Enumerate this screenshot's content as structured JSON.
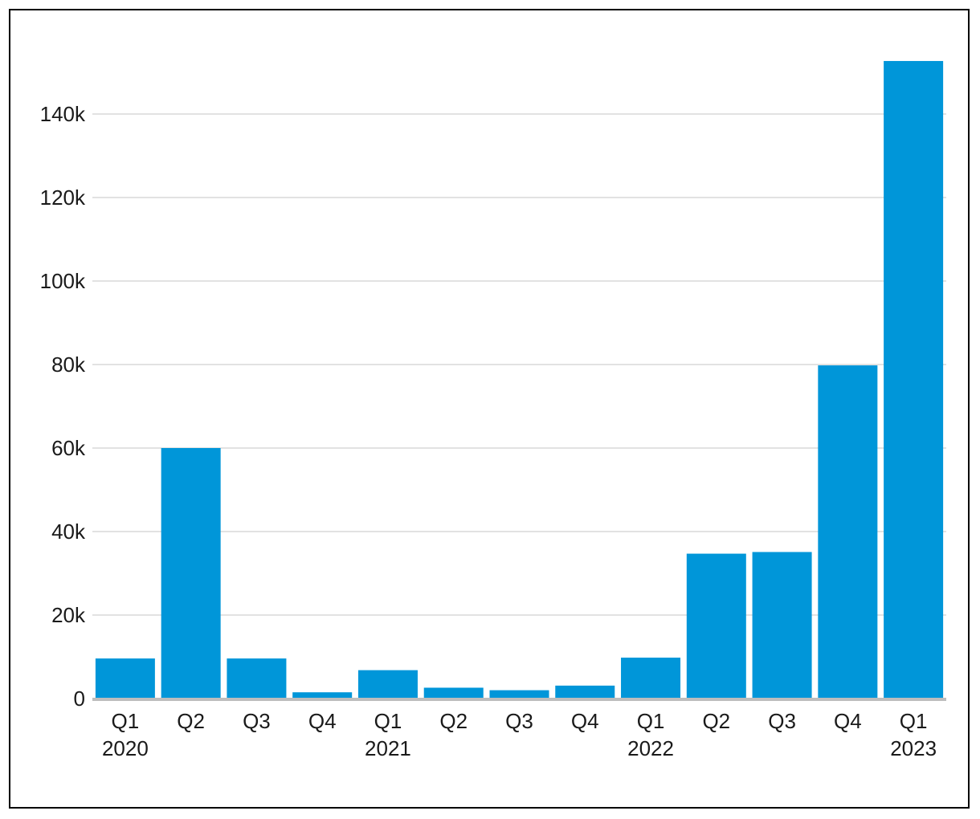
{
  "chart_data": {
    "type": "bar",
    "title": "",
    "xlabel": "",
    "ylabel": "",
    "ylim": [
      0,
      155000
    ],
    "yticks": [
      0,
      20000,
      40000,
      60000,
      80000,
      100000,
      120000,
      140000
    ],
    "ytick_labels": [
      "0",
      "20k",
      "40k",
      "60k",
      "80k",
      "100k",
      "120k",
      "140k"
    ],
    "grid": true,
    "categories": [
      {
        "quarter": "Q1",
        "year": "2020"
      },
      {
        "quarter": "Q2",
        "year": ""
      },
      {
        "quarter": "Q3",
        "year": ""
      },
      {
        "quarter": "Q4",
        "year": ""
      },
      {
        "quarter": "Q1",
        "year": "2021"
      },
      {
        "quarter": "Q2",
        "year": ""
      },
      {
        "quarter": "Q3",
        "year": ""
      },
      {
        "quarter": "Q4",
        "year": ""
      },
      {
        "quarter": "Q1",
        "year": "2022"
      },
      {
        "quarter": "Q2",
        "year": ""
      },
      {
        "quarter": "Q3",
        "year": ""
      },
      {
        "quarter": "Q4",
        "year": ""
      },
      {
        "quarter": "Q1",
        "year": "2023"
      }
    ],
    "values": [
      9600,
      60000,
      9600,
      1500,
      6800,
      2600,
      2000,
      3100,
      9800,
      34700,
      35100,
      79800,
      152700
    ],
    "colors": {
      "bar": "#0096d9",
      "grid": "#c4c4c4",
      "baseline": "#bdbdbd"
    }
  }
}
